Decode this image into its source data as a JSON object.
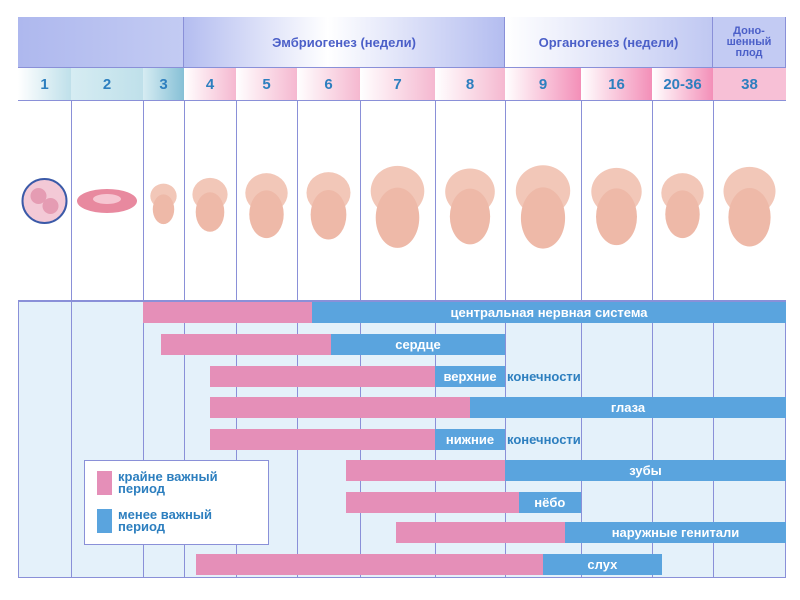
{
  "header": {
    "embryogenesis": "Эмбриогенез (недели)",
    "organogenesis": "Органогенез (недели)",
    "full_term": "Доно-\nшенный\nплод"
  },
  "weeks": [
    "1",
    "2",
    "3",
    "4",
    "5",
    "6",
    "7",
    "8",
    "9",
    "16",
    "20-36",
    "38"
  ],
  "legend": {
    "critical": "крайне важный период",
    "less": "менее важный период"
  },
  "colors": {
    "critical": "#e58fb8",
    "less": "#5aa4de",
    "background": "#e4f1fa"
  },
  "position_units": "week columns (0 = start of week 1 column, 12 = end of week 38 column)",
  "bars": [
    {
      "label": "центральная нервная система",
      "critical": [
        2.0,
        5.24
      ],
      "less_end": 12.0
    },
    {
      "label": "сердце",
      "critical": [
        2.44,
        5.54
      ],
      "less_end": 8.0
    },
    {
      "label": "верхние",
      "label_overflow": "конечности",
      "critical": [
        3.5,
        7.0
      ],
      "less_end": 8.0
    },
    {
      "label": "глаза",
      "critical": [
        3.5,
        7.5
      ],
      "less_end": 12.0
    },
    {
      "label": "нижние",
      "label_overflow": "конечности",
      "critical": [
        3.5,
        7.0
      ],
      "less_end": 8.0
    },
    {
      "label": "зубы",
      "critical": [
        5.78,
        8.0
      ],
      "less_end": 12.0
    },
    {
      "label": "нёбо",
      "critical": [
        5.78,
        8.18
      ],
      "less_end": 9.0
    },
    {
      "label": "наружные генитали",
      "critical": [
        6.48,
        8.79
      ],
      "less_end": 12.0
    },
    {
      "label": "слух",
      "critical": [
        3.23,
        8.5
      ],
      "less_end": 10.16
    }
  ]
}
